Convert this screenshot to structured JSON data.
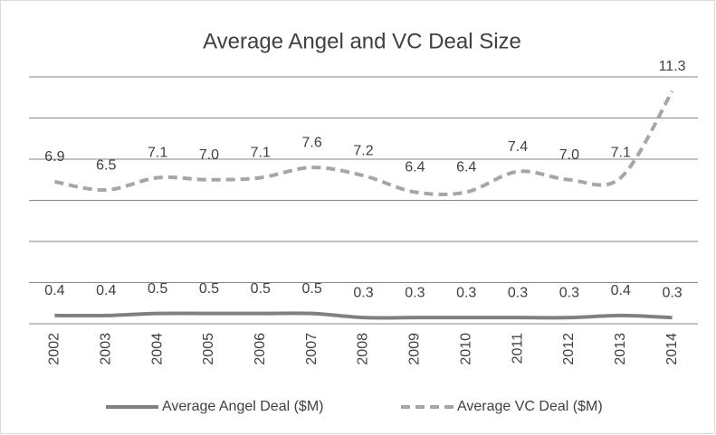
{
  "chart_data": {
    "type": "line",
    "title": "Average Angel and VC Deal Size",
    "categories": [
      "2002",
      "2003",
      "2004",
      "2005",
      "2006",
      "2007",
      "2008",
      "2009",
      "2010",
      "2011",
      "2012",
      "2013",
      "2014"
    ],
    "series": [
      {
        "name": "Average Angel Deal ($M)",
        "color": "#808080",
        "dash": false,
        "values": [
          0.4,
          0.4,
          0.5,
          0.5,
          0.5,
          0.5,
          0.3,
          0.3,
          0.3,
          0.3,
          0.3,
          0.4,
          0.3
        ]
      },
      {
        "name": "Average VC Deal ($M)",
        "color": "#a6a6a6",
        "dash": true,
        "values": [
          6.9,
          6.5,
          7.1,
          7.0,
          7.1,
          7.6,
          7.2,
          6.4,
          6.4,
          7.4,
          7.0,
          7.1,
          11.3
        ],
        "value_labels": [
          "6.9",
          "6.5",
          "7.1",
          "7.0",
          "7.1",
          "7.6",
          "7.2",
          "6.4",
          "6.4",
          "7.4",
          "7.0",
          "7.1",
          "11.3"
        ]
      }
    ],
    "ylim": [
      0,
      12
    ],
    "yticks": [
      0,
      2,
      4,
      6,
      8,
      10,
      12
    ],
    "grid": true,
    "legend": "bottom"
  }
}
